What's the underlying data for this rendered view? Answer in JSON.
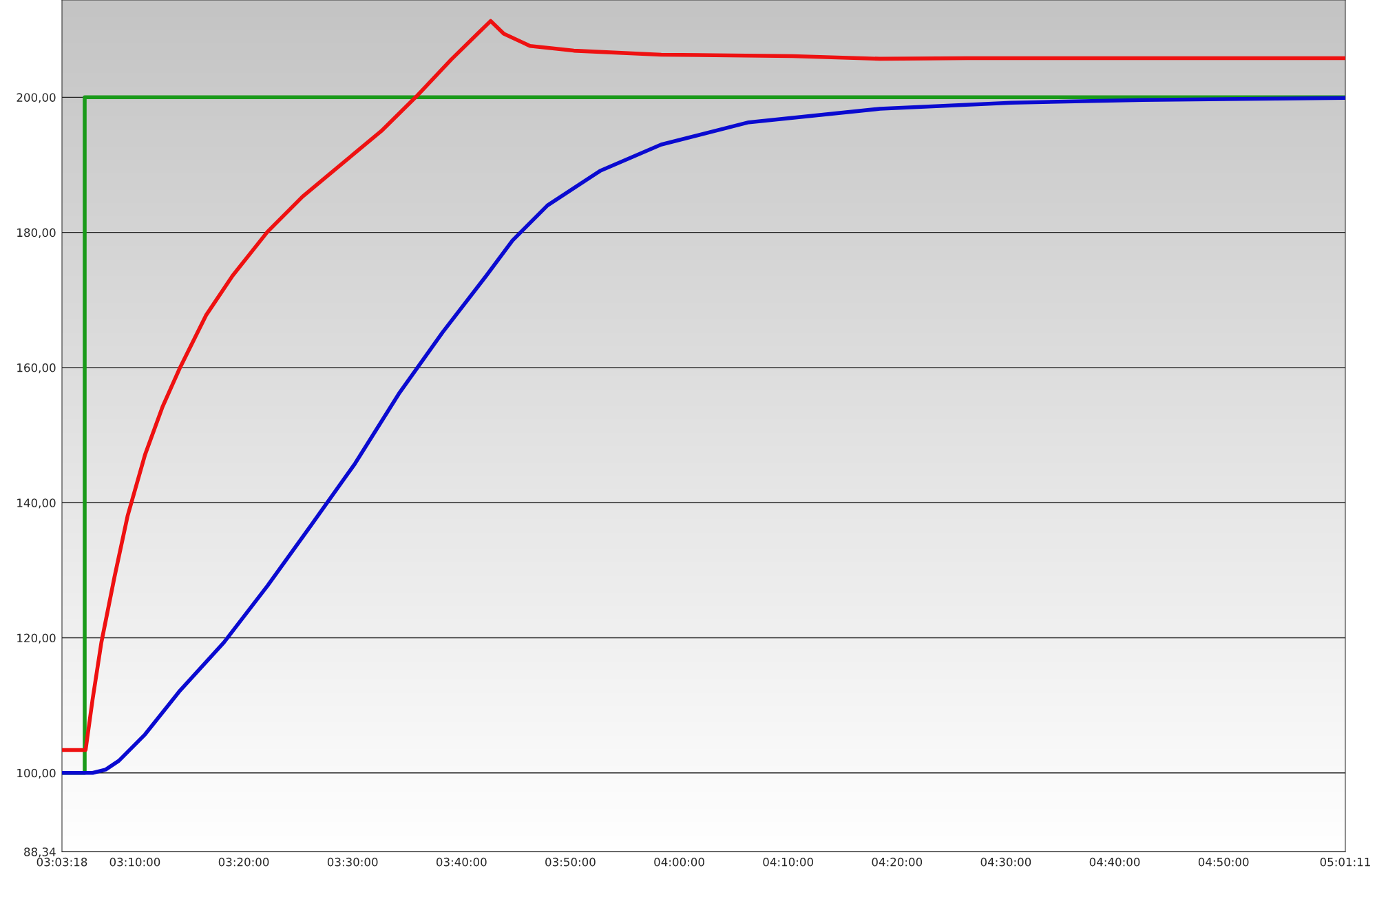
{
  "chart_data": {
    "type": "line",
    "xlim": [
      3.055,
      5.01972
    ],
    "xticks": [
      {
        "value": 3.055,
        "label": "03:03:18"
      },
      {
        "value": 3.16667,
        "label": "03:10:00"
      },
      {
        "value": 3.33333,
        "label": "03:20:00"
      },
      {
        "value": 3.5,
        "label": "03:30:00"
      },
      {
        "value": 3.66667,
        "label": "03:40:00"
      },
      {
        "value": 3.83333,
        "label": "03:50:00"
      },
      {
        "value": 4.0,
        "label": "04:00:00"
      },
      {
        "value": 4.16667,
        "label": "04:10:00"
      },
      {
        "value": 4.33333,
        "label": "04:20:00"
      },
      {
        "value": 4.5,
        "label": "04:30:00"
      },
      {
        "value": 4.66667,
        "label": "04:40:00"
      },
      {
        "value": 4.83333,
        "label": "04:50:00"
      },
      {
        "value": 5.01972,
        "label": "05:01:11"
      }
    ],
    "ylim": [
      88.34,
      214.4
    ],
    "yticks": [
      {
        "value": 88.34,
        "label": "88,34"
      },
      {
        "value": 100,
        "label": "100,00"
      },
      {
        "value": 120,
        "label": "120,00"
      },
      {
        "value": 140,
        "label": "140,00"
      },
      {
        "value": 160,
        "label": "160,00"
      },
      {
        "value": 180,
        "label": "180,00"
      },
      {
        "value": 200,
        "label": "200,00"
      }
    ],
    "grid": "y",
    "series": [
      {
        "color": "#1a9a1a",
        "x": [
          3.055,
          3.0898,
          3.0898,
          5.0197
        ],
        "values": [
          100.0,
          100.0,
          200.0,
          200.0
        ]
      },
      {
        "color": "#ee1111",
        "x": [
          3.055,
          3.0885,
          3.0912,
          3.1019,
          3.1153,
          3.1354,
          3.1554,
          3.1822,
          3.209,
          3.2358,
          3.276,
          3.3162,
          3.3697,
          3.4233,
          3.4903,
          3.5438,
          3.5974,
          3.651,
          3.6912,
          3.7113,
          3.7314,
          3.7715,
          3.8385,
          3.9724,
          4.1733,
          4.3072,
          4.4412,
          4.7089,
          5.0197
        ],
        "values": [
          103.4,
          103.4,
          103.4,
          110.9,
          119.3,
          129.0,
          138.0,
          147.1,
          154.2,
          160.0,
          167.8,
          173.6,
          180.1,
          185.3,
          190.7,
          195.0,
          200.1,
          205.6,
          209.4,
          211.3,
          209.4,
          207.6,
          206.9,
          206.3,
          206.1,
          205.7,
          205.8,
          205.8,
          205.8
        ]
      },
      {
        "color": "#0a0ad0",
        "x": [
          3.055,
          3.1019,
          3.122,
          3.1421,
          3.1822,
          3.2358,
          3.3028,
          3.3697,
          3.4367,
          3.5037,
          3.5706,
          3.6376,
          3.7046,
          3.7447,
          3.7983,
          3.8787,
          3.9724,
          4.1064,
          4.3072,
          4.5081,
          4.709,
          5.0197
        ],
        "values": [
          100.0,
          100.0,
          100.5,
          101.8,
          105.7,
          112.2,
          119.3,
          127.7,
          136.7,
          145.8,
          156.1,
          165.2,
          173.6,
          178.8,
          184.0,
          189.1,
          193.0,
          196.3,
          198.3,
          199.2,
          199.6,
          199.9
        ]
      }
    ]
  }
}
